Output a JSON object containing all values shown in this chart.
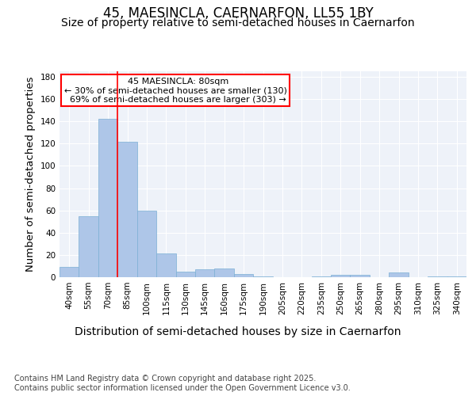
{
  "title": "45, MAESINCLA, CAERNARFON, LL55 1BY",
  "subtitle": "Size of property relative to semi-detached houses in Caernarfon",
  "xlabel": "Distribution of semi-detached houses by size in Caernarfon",
  "ylabel": "Number of semi-detached properties",
  "footnote": "Contains HM Land Registry data © Crown copyright and database right 2025.\nContains public sector information licensed under the Open Government Licence v3.0.",
  "categories": [
    "40sqm",
    "55sqm",
    "70sqm",
    "85sqm",
    "100sqm",
    "115sqm",
    "130sqm",
    "145sqm",
    "160sqm",
    "175sqm",
    "190sqm",
    "205sqm",
    "220sqm",
    "235sqm",
    "250sqm",
    "265sqm",
    "280sqm",
    "295sqm",
    "310sqm",
    "325sqm",
    "340sqm"
  ],
  "values": [
    9,
    55,
    142,
    122,
    60,
    21,
    5,
    7,
    8,
    3,
    1,
    0,
    0,
    1,
    2,
    2,
    0,
    4,
    0,
    1,
    1
  ],
  "bar_color": "#aec6e8",
  "bar_edge_color": "#7bafd4",
  "property_line_x": 2.5,
  "property_sqm": 80,
  "property_label": "45 MAESINCLA: 80sqm",
  "pct_smaller": 30,
  "n_smaller": 130,
  "pct_larger": 69,
  "n_larger": 303,
  "annotation_box_color": "#cc0000",
  "ylim": [
    0,
    185
  ],
  "yticks": [
    0,
    20,
    40,
    60,
    80,
    100,
    120,
    140,
    160,
    180
  ],
  "bg_color": "#eef2f9",
  "grid_color": "#ffffff",
  "title_fontsize": 12,
  "subtitle_fontsize": 10,
  "axis_label_fontsize": 9.5,
  "tick_fontsize": 7.5,
  "annotation_fontsize": 8,
  "footnote_fontsize": 7,
  "footnote_color": "#444444"
}
